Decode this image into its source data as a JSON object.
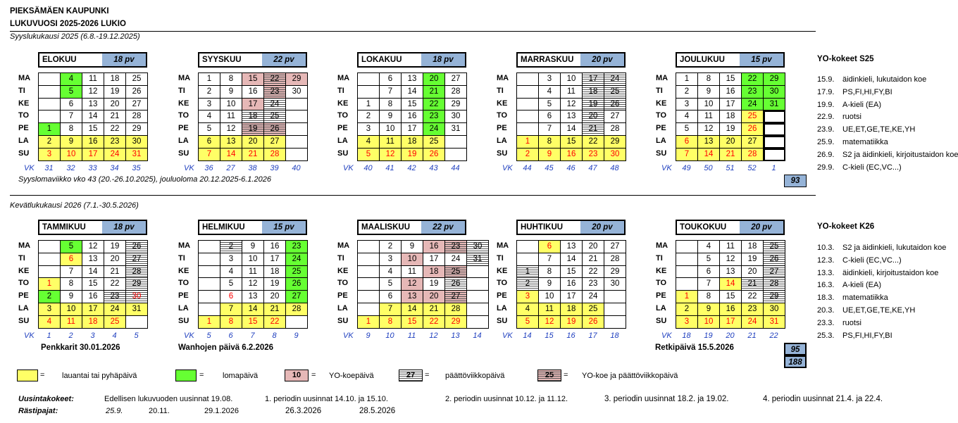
{
  "header": {
    "title": "PIEKSÄMÄEN KAUPUNKI",
    "subtitle": "LUKUVUOSI 2025-2026 LUKIO"
  },
  "terms": {
    "autumn": "Syyslukukausi 2025 (6.8.-19.12.2025)",
    "spring": "Kevätlukukausi 2026 (7.1.-30.5.2026)"
  },
  "day_labels": [
    "MA",
    "TI",
    "KE",
    "TO",
    "PE",
    "LA",
    "SU"
  ],
  "vk_label": "VK",
  "months": [
    {
      "name": "ELOKUU",
      "pv": "18 pv",
      "vk": [
        "31",
        "32",
        "33",
        "34",
        "35"
      ],
      "rows": [
        [
          "",
          "4",
          "11",
          "18",
          "25"
        ],
        [
          "",
          "5",
          "12",
          "19",
          "26"
        ],
        [
          "",
          "6",
          "13",
          "20",
          "27"
        ],
        [
          "",
          "7",
          "14",
          "21",
          "28"
        ],
        [
          "1",
          "8",
          "15",
          "22",
          "29"
        ],
        [
          "2",
          "9",
          "16",
          "23",
          "30"
        ],
        [
          "3",
          "10",
          "17",
          "24",
          "31"
        ]
      ],
      "styles": [
        [
          "",
          "g",
          "",
          "",
          ""
        ],
        [
          "",
          "g",
          "",
          "",
          ""
        ],
        [
          "",
          "",
          "",
          "",
          ""
        ],
        [
          "",
          "",
          "",
          "",
          ""
        ],
        [
          "g",
          "",
          "",
          "",
          ""
        ],
        [
          "y",
          "y",
          "y",
          "y",
          "y"
        ],
        [
          "yr",
          "yr",
          "yr",
          "yr",
          "yr"
        ]
      ]
    },
    {
      "name": "SYYSKUU",
      "pv": "22 pv",
      "vk": [
        "36",
        "27",
        "38",
        "39",
        "40"
      ],
      "rows": [
        [
          "1",
          "8",
          "15",
          "22",
          "29"
        ],
        [
          "2",
          "9",
          "16",
          "23",
          "30"
        ],
        [
          "3",
          "10",
          "17",
          "24",
          ""
        ],
        [
          "4",
          "11",
          "18",
          "25",
          ""
        ],
        [
          "5",
          "12",
          "19",
          "26",
          ""
        ],
        [
          "6",
          "13",
          "20",
          "27",
          ""
        ],
        [
          "7",
          "14",
          "21",
          "28",
          ""
        ]
      ],
      "styles": [
        [
          "",
          "",
          "p",
          "ph",
          "p"
        ],
        [
          "",
          "",
          "",
          "ph",
          ""
        ],
        [
          "",
          "",
          "p",
          "h",
          ""
        ],
        [
          "",
          "",
          "h",
          "h",
          ""
        ],
        [
          "",
          "",
          "ph",
          "ph",
          ""
        ],
        [
          "y",
          "y",
          "y",
          "y",
          ""
        ],
        [
          "yr",
          "yr",
          "yr",
          "yr",
          ""
        ]
      ]
    },
    {
      "name": "LOKAKUU",
      "pv": "18 pv",
      "vk": [
        "40",
        "41",
        "42",
        "43",
        "44"
      ],
      "rows": [
        [
          "",
          "6",
          "13",
          "20",
          "27"
        ],
        [
          "",
          "7",
          "14",
          "21",
          "28"
        ],
        [
          "1",
          "8",
          "15",
          "22",
          "29"
        ],
        [
          "2",
          "9",
          "16",
          "23",
          "30"
        ],
        [
          "3",
          "10",
          "17",
          "24",
          "31"
        ],
        [
          "4",
          "11",
          "18",
          "25",
          ""
        ],
        [
          "5",
          "12",
          "19",
          "26",
          ""
        ]
      ],
      "styles": [
        [
          "",
          "",
          "",
          "g",
          ""
        ],
        [
          "",
          "",
          "",
          "g",
          ""
        ],
        [
          "",
          "",
          "",
          "g",
          ""
        ],
        [
          "",
          "",
          "",
          "g",
          ""
        ],
        [
          "",
          "",
          "",
          "g",
          ""
        ],
        [
          "y",
          "y",
          "y",
          "y",
          ""
        ],
        [
          "yr",
          "yr",
          "yr",
          "yr",
          ""
        ]
      ]
    },
    {
      "name": "MARRASKUU",
      "pv": "20 pv",
      "vk": [
        "44",
        "45",
        "46",
        "47",
        "48"
      ],
      "rows": [
        [
          "",
          "3",
          "10",
          "17",
          "24"
        ],
        [
          "",
          "4",
          "11",
          "18",
          "25"
        ],
        [
          "",
          "5",
          "12",
          "19",
          "26"
        ],
        [
          "",
          "6",
          "13",
          "20",
          "27"
        ],
        [
          "",
          "7",
          "14",
          "21",
          "28"
        ],
        [
          "1",
          "8",
          "15",
          "22",
          "29"
        ],
        [
          "2",
          "9",
          "16",
          "23",
          "30"
        ]
      ],
      "styles": [
        [
          "",
          "",
          "",
          "h",
          "h"
        ],
        [
          "",
          "",
          "",
          "h",
          "h"
        ],
        [
          "",
          "",
          "",
          "h",
          "h"
        ],
        [
          "",
          "",
          "",
          "h",
          ""
        ],
        [
          "",
          "",
          "",
          "h",
          ""
        ],
        [
          "yr",
          "y",
          "y",
          "y",
          "y"
        ],
        [
          "yr",
          "yr",
          "yr",
          "yr",
          "yr"
        ]
      ]
    },
    {
      "name": "JOULUKUU",
      "pv": "15 pv",
      "vk": [
        "49",
        "50",
        "51",
        "52",
        "1"
      ],
      "rows": [
        [
          "1",
          "8",
          "15",
          "22",
          "29"
        ],
        [
          "2",
          "9",
          "16",
          "23",
          "30"
        ],
        [
          "3",
          "10",
          "17",
          "24",
          "31"
        ],
        [
          "4",
          "11",
          "18",
          "25",
          ""
        ],
        [
          "5",
          "12",
          "19",
          "26",
          ""
        ],
        [
          "6",
          "13",
          "20",
          "27",
          ""
        ],
        [
          "7",
          "14",
          "21",
          "28",
          ""
        ]
      ],
      "styles": [
        [
          "",
          "",
          "",
          "g",
          "g"
        ],
        [
          "",
          "",
          "",
          "g",
          "g"
        ],
        [
          "",
          "",
          "",
          "g",
          "g"
        ],
        [
          "",
          "",
          "",
          "yr",
          "b"
        ],
        [
          "",
          "",
          "",
          "yr",
          "b"
        ],
        [
          "yr",
          "y",
          "y",
          "y",
          "b"
        ],
        [
          "yr",
          "yr",
          "yr",
          "yr",
          "b"
        ]
      ]
    },
    {
      "name": "TAMMIKUU",
      "pv": "18 pv",
      "vk": [
        "1",
        "2",
        "3",
        "4",
        "5"
      ],
      "rows": [
        [
          "",
          "5",
          "12",
          "19",
          "26"
        ],
        [
          "",
          "6",
          "13",
          "20",
          "27"
        ],
        [
          "",
          "7",
          "14",
          "21",
          "28"
        ],
        [
          "1",
          "8",
          "15",
          "22",
          "29"
        ],
        [
          "2",
          "9",
          "16",
          "23",
          "30"
        ],
        [
          "3",
          "10",
          "17",
          "24",
          "31"
        ],
        [
          "4",
          "11",
          "18",
          "25",
          ""
        ]
      ],
      "styles": [
        [
          "",
          "g",
          "",
          "",
          "h"
        ],
        [
          "",
          "yr",
          "",
          "",
          "h"
        ],
        [
          "",
          "",
          "",
          "",
          "h"
        ],
        [
          "yr",
          "",
          "",
          "",
          "h"
        ],
        [
          "g",
          "",
          "",
          "h",
          "hr"
        ],
        [
          "y",
          "y",
          "y",
          "y",
          "y"
        ],
        [
          "yr",
          "yr",
          "yr",
          "yr",
          ""
        ]
      ]
    },
    {
      "name": "HELMIKUU",
      "pv": "15 pv",
      "vk": [
        "5",
        "6",
        "7",
        "8",
        "9"
      ],
      "rows": [
        [
          "",
          "2",
          "9",
          "16",
          "23"
        ],
        [
          "",
          "3",
          "10",
          "17",
          "24"
        ],
        [
          "",
          "4",
          "11",
          "18",
          "25"
        ],
        [
          "",
          "5",
          "12",
          "19",
          "26"
        ],
        [
          "",
          "6",
          "13",
          "20",
          "27"
        ],
        [
          "",
          "7",
          "14",
          "21",
          "28"
        ],
        [
          "1",
          "8",
          "15",
          "22",
          ""
        ]
      ],
      "styles": [
        [
          "",
          "h",
          "",
          "",
          "g"
        ],
        [
          "",
          "",
          "",
          "",
          "g"
        ],
        [
          "",
          "",
          "",
          "",
          "g"
        ],
        [
          "",
          "",
          "",
          "",
          "g"
        ],
        [
          "",
          "r",
          "",
          "",
          "g"
        ],
        [
          "",
          "y",
          "y",
          "y",
          "y"
        ],
        [
          "yr",
          "yr",
          "yr",
          "yr",
          ""
        ]
      ]
    },
    {
      "name": "MAALISKUU",
      "pv": "22 pv",
      "vk": [
        "9",
        "10",
        "11",
        "12",
        "13",
        "14"
      ],
      "rows": [
        [
          "",
          "2",
          "9",
          "16",
          "23",
          "30"
        ],
        [
          "",
          "3",
          "10",
          "17",
          "24",
          "31"
        ],
        [
          "",
          "4",
          "11",
          "18",
          "25",
          ""
        ],
        [
          "",
          "5",
          "12",
          "19",
          "26",
          ""
        ],
        [
          "",
          "6",
          "13",
          "20",
          "27",
          ""
        ],
        [
          "",
          "7",
          "14",
          "21",
          "28",
          ""
        ],
        [
          "1",
          "8",
          "15",
          "22",
          "29",
          ""
        ]
      ],
      "styles": [
        [
          "",
          "",
          "",
          "p",
          "ph",
          "h"
        ],
        [
          "",
          "",
          "p",
          "",
          "",
          "h"
        ],
        [
          "",
          "",
          "",
          "p",
          "ph",
          ""
        ],
        [
          "",
          "",
          "p",
          "",
          "h",
          ""
        ],
        [
          "",
          "",
          "p",
          "p",
          "ph",
          ""
        ],
        [
          "",
          "y",
          "y",
          "y",
          "y",
          ""
        ],
        [
          "yr",
          "yr",
          "yr",
          "yr",
          "yr",
          ""
        ]
      ]
    },
    {
      "name": "HUHTIKUU",
      "pv": "20 pv",
      "vk": [
        "14",
        "15",
        "16",
        "17",
        "18"
      ],
      "rows": [
        [
          "",
          "6",
          "13",
          "20",
          "27"
        ],
        [
          "",
          "7",
          "14",
          "21",
          "28"
        ],
        [
          "1",
          "8",
          "15",
          "22",
          "29"
        ],
        [
          "2",
          "9",
          "16",
          "23",
          "30"
        ],
        [
          "3",
          "10",
          "17",
          "24",
          ""
        ],
        [
          "4",
          "11",
          "18",
          "25",
          ""
        ],
        [
          "5",
          "12",
          "19",
          "26",
          ""
        ]
      ],
      "styles": [
        [
          "",
          "yr",
          "",
          "",
          ""
        ],
        [
          "",
          "",
          "",
          "",
          ""
        ],
        [
          "h",
          "",
          "",
          "",
          ""
        ],
        [
          "h",
          "",
          "",
          "",
          ""
        ],
        [
          "yr",
          "",
          "",
          "",
          ""
        ],
        [
          "y",
          "y",
          "y",
          "y",
          ""
        ],
        [
          "yr",
          "yr",
          "yr",
          "yr",
          ""
        ]
      ]
    },
    {
      "name": "TOUKOKUU",
      "pv": "20 pv",
      "vk": [
        "18",
        "19",
        "20",
        "21",
        "22"
      ],
      "rows": [
        [
          "",
          "4",
          "11",
          "18",
          "25"
        ],
        [
          "",
          "5",
          "12",
          "19",
          "26"
        ],
        [
          "",
          "6",
          "13",
          "20",
          "27"
        ],
        [
          "",
          "7",
          "14",
          "21",
          "28"
        ],
        [
          "1",
          "8",
          "15",
          "22",
          "29"
        ],
        [
          "2",
          "9",
          "16",
          "23",
          "30"
        ],
        [
          "3",
          "10",
          "17",
          "24",
          "31"
        ]
      ],
      "styles": [
        [
          "",
          "",
          "",
          "",
          "h"
        ],
        [
          "",
          "",
          "",
          "",
          "h"
        ],
        [
          "",
          "",
          "",
          "",
          "h"
        ],
        [
          "",
          "",
          "yr",
          "h",
          "h"
        ],
        [
          "yr",
          "",
          "",
          "",
          "h"
        ],
        [
          "y",
          "y",
          "y",
          "y",
          "y"
        ],
        [
          "yr",
          "yr",
          "yr",
          "yr",
          "yr"
        ]
      ]
    }
  ],
  "autumn_note": "Syyslomaviikko vko 43 (20.-26.10.2025),  jouluoloma 20.12.2025-6.1.2026",
  "autumn_total": "93",
  "spring_notes": {
    "penkkarit": "Penkkarit 30.01.2026",
    "wanhojen": "Wanhojen päivä 6.2.2026",
    "retkipaiva": "Retkipäivä 15.5.2026"
  },
  "spring_totals": [
    "95",
    "188"
  ],
  "yo_s25": {
    "title": "YO-kokeet S25",
    "items": [
      {
        "date": "15.9.",
        "subject": "äidinkieli, lukutaidon koe"
      },
      {
        "date": "17.9.",
        "subject": "PS,FI,HI,FY,BI"
      },
      {
        "date": "19.9.",
        "subject": "A-kieli (EA)"
      },
      {
        "date": "22.9.",
        "subject": "ruotsi"
      },
      {
        "date": "23.9.",
        "subject": "UE,ET,GE,TE,KE,YH"
      },
      {
        "date": "25.9.",
        "subject": "matematiikka"
      },
      {
        "date": "26.9.",
        "subject": "S2 ja äidinkieli, kirjoitustaidon koe"
      },
      {
        "date": "29.9.",
        "subject": "C-kieli (EC,VC...)"
      }
    ]
  },
  "yo_k26": {
    "title": "YO-kokeet K26",
    "items": [
      {
        "date": "10.3.",
        "subject": "S2 ja äidinkieli, lukutaidon koe"
      },
      {
        "date": "12.3.",
        "subject": "C-kieli (EC,VC...)"
      },
      {
        "date": "13.3.",
        "subject": "äidinkieli, kirjoitustaidon koe"
      },
      {
        "date": "16.3.",
        "subject": "A-kieli (EA)"
      },
      {
        "date": "18.3.",
        "subject": "matematiikka"
      },
      {
        "date": "20.3.",
        "subject": "UE,ET,GE,TE,KE,YH"
      },
      {
        "date": "23.3.",
        "subject": "ruotsi"
      },
      {
        "date": "25.3.",
        "subject": "PS,FI,HI,FY,BI"
      }
    ]
  },
  "legend": {
    "eq": "=",
    "saturday": "lauantai tai pyhäpäivä",
    "holiday": "lomapäivä",
    "yo_sample": "10",
    "yo": "YO-koepäivä",
    "exam_sample": "27",
    "exam": "päättöviikkopäivä",
    "both_sample": "25",
    "both": "YO-koe ja päättöviikkopäivä"
  },
  "footer": {
    "uusinta_label": "Uusintakokeet:",
    "uusinta_prev": "Edellisen lukuvuoden uusinnat 19.08.",
    "p1": "1. periodin uusinnat 14.10. ja 15.10.",
    "p2": "2. periodin uusinnat 10.12. ja 11.12.",
    "p3": "3. periodin uusinnat 18.2. ja 19.02.",
    "p4": "4. periodin uusinnat 21.4. ja 22.4.",
    "rasti_label": "Rästipajat:",
    "rasti": [
      "25.9.",
      "20.11.",
      "29.1.2026",
      "26.3.2026",
      "28.5.2026"
    ]
  }
}
